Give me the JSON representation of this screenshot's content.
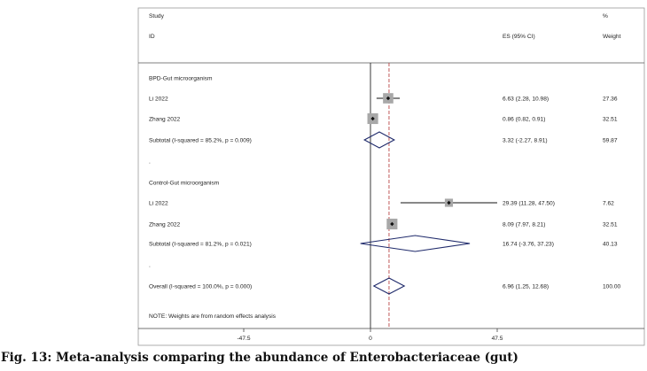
{
  "chart_data": {
    "type": "forest",
    "header": {
      "study_line1": "Study",
      "study_line2": "ID",
      "es_label": "ES (95% CI)",
      "weight_line1": "%",
      "weight_line2": "Weight"
    },
    "xaxis": {
      "ticks": [
        -47.5,
        0,
        47.5
      ],
      "tick_labels": [
        "-47.5",
        "0",
        "47.5"
      ],
      "range": [
        -75,
        125
      ]
    },
    "null_line": 0,
    "overall_line": 6.96,
    "rows": [
      {
        "kind": "group",
        "label": "BPD-Gut microorganism"
      },
      {
        "kind": "study",
        "label": "Li 2022",
        "es": 6.63,
        "lo": 2.28,
        "hi": 10.98,
        "es_text": "6.63 (2.28, 10.98)",
        "weight": "27.36"
      },
      {
        "kind": "study",
        "label": "Zhang 2022",
        "es": 0.86,
        "lo": 0.82,
        "hi": 0.91,
        "es_text": "0.86 (0.82, 0.91)",
        "weight": "32.51"
      },
      {
        "kind": "subtotal",
        "label": "Subtotal  (I-squared = 85.2%, p = 0.009)",
        "es": 3.32,
        "lo": -2.27,
        "hi": 8.91,
        "es_text": "3.32 (-2.27, 8.91)",
        "weight": "59.87"
      },
      {
        "kind": "blank",
        "label": "."
      },
      {
        "kind": "group",
        "label": "Control-Gut microorganism"
      },
      {
        "kind": "study",
        "label": "Li 2022",
        "es": 29.39,
        "lo": 11.28,
        "hi": 47.5,
        "es_text": "29.39 (11.28, 47.50)",
        "weight": "7.62"
      },
      {
        "kind": "study",
        "label": "Zhang 2022",
        "es": 8.09,
        "lo": 7.97,
        "hi": 8.21,
        "es_text": "8.09 (7.97, 8.21)",
        "weight": "32.51"
      },
      {
        "kind": "subtotal",
        "label": "Subtotal  (I-squared = 81.2%, p = 0.021)",
        "es": 16.74,
        "lo": -3.76,
        "hi": 37.23,
        "es_text": "16.74 (-3.76, 37.23)",
        "weight": "40.13"
      },
      {
        "kind": "blank",
        "label": "."
      },
      {
        "kind": "overall",
        "label": "Overall  (I-squared = 100.0%, p = 0.000)",
        "es": 6.96,
        "lo": 1.25,
        "hi": 12.68,
        "es_text": "6.96 (1.25, 12.68)",
        "weight": "100.00"
      }
    ],
    "note": "NOTE: Weights are from random effects analysis",
    "colors": {
      "diamond": "#1f2a6b",
      "box": "#a8a8a8",
      "overall_line": "#b03030",
      "axis": "#444444"
    }
  },
  "caption": "Fig. 13: Meta-analysis comparing the abundance of Enterobacteriaceae (gut)"
}
